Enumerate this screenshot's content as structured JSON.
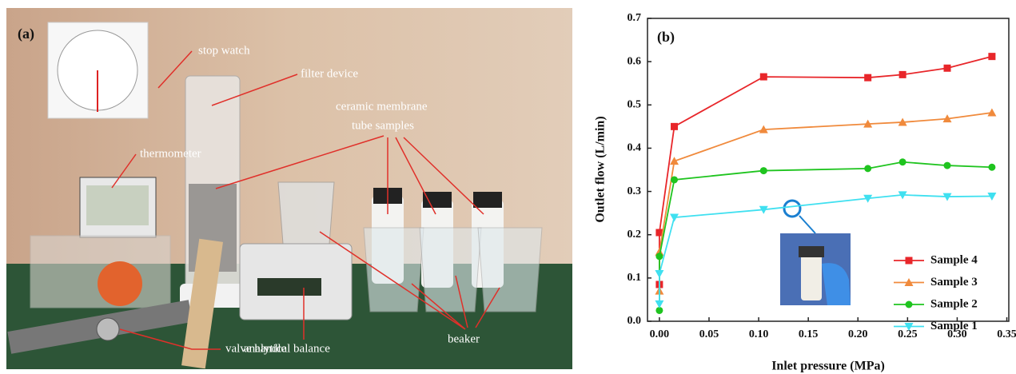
{
  "photo": {
    "panel_label": "(a)",
    "labels": [
      "stop watch",
      "filter device",
      "ceramic membrane",
      "tube samples",
      "thermometer",
      "valve handle",
      "analytical balance",
      "beaker"
    ]
  },
  "chart_data": {
    "type": "line",
    "panel_label": "(b)",
    "x_label": "Inlet pressure (MPa)",
    "y_label": "Outlet flow (L/min)",
    "x": [
      0,
      0,
      0.015,
      0.105,
      0.21,
      0.245,
      0.29,
      0.335
    ],
    "series": [
      {
        "name": "Sample 4",
        "color": "#e8262a",
        "marker": "square",
        "values": [
          0.085,
          0.205,
          0.45,
          0.565,
          0.563,
          0.57,
          0.585,
          0.612
        ]
      },
      {
        "name": "Sample 3",
        "color": "#f08a3c",
        "marker": "triangle-up",
        "values": [
          0.07,
          0.16,
          0.37,
          0.443,
          0.456,
          0.46,
          0.468,
          0.482
        ]
      },
      {
        "name": "Sample 2",
        "color": "#1fc41f",
        "marker": "circle",
        "values": [
          0.025,
          0.15,
          0.327,
          0.348,
          0.353,
          0.368,
          0.36,
          0.356
        ]
      },
      {
        "name": "Sample 1",
        "color": "#3fe0f0",
        "marker": "triangle-down",
        "values": [
          0.04,
          0.11,
          0.24,
          0.258,
          0.284,
          0.292,
          0.288,
          0.289
        ]
      }
    ],
    "xlim": [
      -0.012,
      0.352
    ],
    "xticks": [
      {
        "value": 0,
        "label": "0.00"
      },
      0.05,
      {
        "value": 0.1,
        "label": "0.10"
      },
      0.15,
      {
        "value": 0.2,
        "label": "0.20"
      },
      0.25,
      {
        "value": 0.3,
        "label": "0.30"
      },
      0.35
    ],
    "ylim": [
      0,
      0.7
    ],
    "yticks": [
      {
        "value": 0,
        "label": "0.0"
      },
      0.1,
      0.2,
      0.3,
      0.4,
      0.5,
      0.6,
      0.7
    ],
    "grid": false,
    "legend": "lower right"
  }
}
